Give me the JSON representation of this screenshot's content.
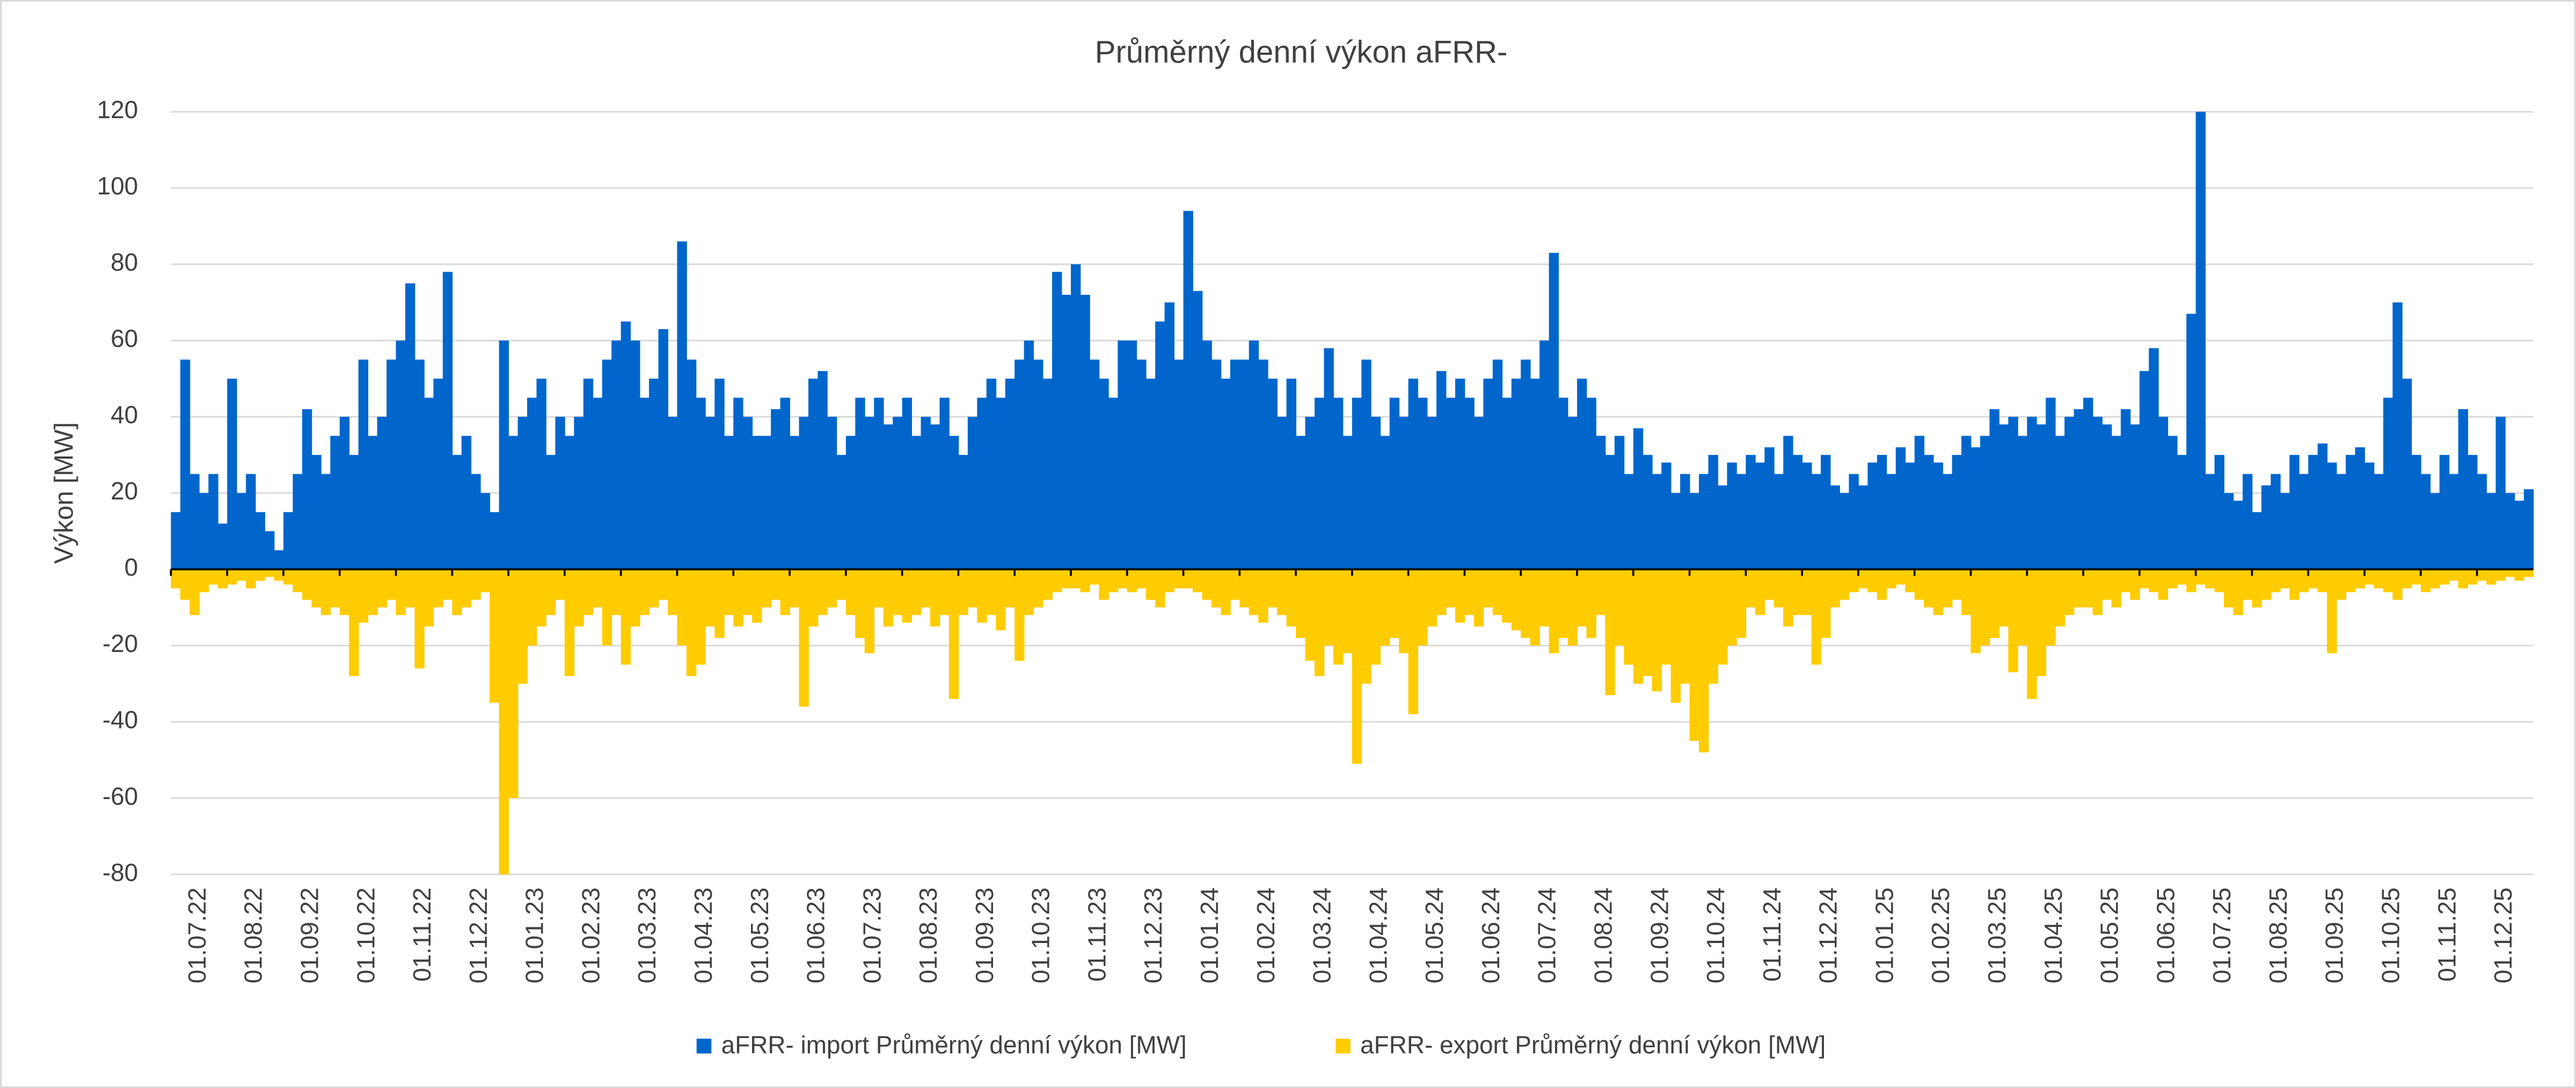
{
  "chart_data": {
    "type": "bar",
    "title": "Průměrný denní výkon aFRR-",
    "y_label": "Výkon [MW]",
    "categories": [
      "01.07.22",
      null,
      null,
      null,
      null,
      null,
      "01.08.22",
      null,
      null,
      null,
      null,
      null,
      "01.09.22",
      null,
      null,
      null,
      null,
      null,
      "01.10.22",
      null,
      null,
      null,
      null,
      null,
      "01.11.22",
      null,
      null,
      null,
      null,
      null,
      "01.12.22",
      null,
      null,
      null,
      null,
      null,
      "01.01.23",
      null,
      null,
      null,
      null,
      null,
      "01.02.23",
      null,
      null,
      null,
      null,
      null,
      "01.03.23",
      null,
      null,
      null,
      null,
      null,
      "01.04.23",
      null,
      null,
      null,
      null,
      null,
      "01.05.23",
      null,
      null,
      null,
      null,
      null,
      "01.06.23",
      null,
      null,
      null,
      null,
      null,
      "01.07.23",
      null,
      null,
      null,
      null,
      null,
      "01.08.23",
      null,
      null,
      null,
      null,
      null,
      "01.09.23",
      null,
      null,
      null,
      null,
      null,
      "01.10.23",
      null,
      null,
      null,
      null,
      null,
      "01.11.23",
      null,
      null,
      null,
      null,
      null,
      "01.12.23",
      null,
      null,
      null,
      null,
      null,
      "01.01.24",
      null,
      null,
      null,
      null,
      null,
      "01.02.24",
      null,
      null,
      null,
      null,
      null,
      "01.03.24",
      null,
      null,
      null,
      null,
      null,
      "01.04.24",
      null,
      null,
      null,
      null,
      null,
      "01.05.24",
      null,
      null,
      null,
      null,
      null,
      "01.06.24",
      null,
      null,
      null,
      null,
      null,
      "01.07.24",
      null,
      null,
      null,
      null,
      null,
      "01.08.24",
      null,
      null,
      null,
      null,
      null,
      "01.09.24",
      null,
      null,
      null,
      null,
      null,
      "01.10.24",
      null,
      null,
      null,
      null,
      null,
      "01.11.24",
      null,
      null,
      null,
      null,
      null,
      "01.12.24",
      null,
      null,
      null,
      null,
      null,
      "01.01.25",
      null,
      null,
      null,
      null,
      null,
      "01.02.25",
      null,
      null,
      null,
      null,
      null,
      "01.03.25",
      null,
      null,
      null,
      null,
      null,
      "01.04.25",
      null,
      null,
      null,
      null,
      null,
      "01.05.25",
      null,
      null,
      null,
      null,
      null,
      "01.06.25",
      null,
      null,
      null,
      null,
      null,
      "01.07.25",
      null,
      null,
      null,
      null,
      null,
      "01.08.25",
      null,
      null,
      null,
      null,
      null,
      "01.09.25",
      null,
      null,
      null,
      null,
      null,
      "01.10.25",
      null,
      null,
      null,
      null,
      null,
      "01.11.25",
      null,
      null,
      null,
      null,
      null,
      "01.12.25",
      null,
      null,
      null,
      null,
      null
    ],
    "series": [
      {
        "name": "aFRR- import Průměrný denní výkon [MW]",
        "color": "#0066cc",
        "values": [
          15,
          55,
          25,
          20,
          25,
          12,
          50,
          20,
          25,
          15,
          10,
          5,
          15,
          25,
          42,
          30,
          25,
          35,
          40,
          30,
          55,
          35,
          40,
          55,
          60,
          75,
          55,
          45,
          50,
          78,
          30,
          35,
          25,
          20,
          15,
          60,
          35,
          40,
          45,
          50,
          30,
          40,
          35,
          40,
          50,
          45,
          55,
          60,
          65,
          60,
          45,
          50,
          63,
          40,
          86,
          55,
          45,
          40,
          50,
          35,
          45,
          40,
          35,
          35,
          42,
          45,
          35,
          40,
          50,
          52,
          40,
          30,
          35,
          45,
          40,
          45,
          38,
          40,
          45,
          35,
          40,
          38,
          45,
          35,
          30,
          40,
          45,
          50,
          45,
          50,
          55,
          60,
          55,
          50,
          78,
          72,
          80,
          72,
          55,
          50,
          45,
          60,
          60,
          55,
          50,
          65,
          70,
          55,
          94,
          73,
          60,
          55,
          50,
          55,
          55,
          60,
          55,
          50,
          40,
          50,
          35,
          40,
          45,
          58,
          45,
          35,
          45,
          55,
          40,
          35,
          45,
          40,
          50,
          45,
          40,
          52,
          45,
          50,
          45,
          40,
          50,
          55,
          45,
          50,
          55,
          50,
          60,
          83,
          45,
          40,
          50,
          45,
          35,
          30,
          35,
          25,
          37,
          30,
          25,
          28,
          20,
          25,
          20,
          25,
          30,
          22,
          28,
          25,
          30,
          28,
          32,
          25,
          35,
          30,
          28,
          25,
          30,
          22,
          20,
          25,
          22,
          28,
          30,
          25,
          32,
          28,
          35,
          30,
          28,
          25,
          30,
          35,
          32,
          35,
          42,
          38,
          40,
          35,
          40,
          38,
          45,
          35,
          40,
          42,
          45,
          40,
          38,
          35,
          42,
          38,
          52,
          58,
          40,
          35,
          30,
          67,
          120,
          25,
          30,
          20,
          18,
          25,
          15,
          22,
          25,
          20,
          30,
          25,
          30,
          33,
          28,
          25,
          30,
          32,
          28,
          25,
          45,
          70,
          50,
          30,
          25,
          20,
          30,
          25,
          42,
          30,
          25,
          20,
          40,
          20,
          18,
          21
        ]
      },
      {
        "name": "aFRR- export Průměrný denní výkon [MW]",
        "color": "#ffcc00",
        "values": [
          -5,
          -8,
          -12,
          -6,
          -4,
          -5,
          -4,
          -3,
          -5,
          -3,
          -2,
          -3,
          -4,
          -6,
          -8,
          -10,
          -12,
          -10,
          -12,
          -28,
          -14,
          -12,
          -10,
          -8,
          -12,
          -10,
          -26,
          -15,
          -10,
          -8,
          -12,
          -10,
          -8,
          -6,
          -35,
          -80,
          -60,
          -30,
          -20,
          -15,
          -12,
          -8,
          -28,
          -15,
          -12,
          -10,
          -20,
          -12,
          -25,
          -15,
          -12,
          -10,
          -8,
          -12,
          -20,
          -28,
          -25,
          -15,
          -18,
          -12,
          -15,
          -12,
          -14,
          -10,
          -8,
          -12,
          -10,
          -36,
          -15,
          -12,
          -10,
          -8,
          -12,
          -18,
          -22,
          -10,
          -15,
          -12,
          -14,
          -12,
          -10,
          -15,
          -12,
          -34,
          -12,
          -10,
          -14,
          -12,
          -16,
          -10,
          -24,
          -12,
          -10,
          -8,
          -6,
          -5,
          -5,
          -6,
          -4,
          -8,
          -6,
          -5,
          -6,
          -5,
          -8,
          -10,
          -6,
          -5,
          -5,
          -6,
          -8,
          -10,
          -12,
          -8,
          -10,
          -12,
          -14,
          -10,
          -12,
          -15,
          -18,
          -24,
          -28,
          -20,
          -25,
          -22,
          -51,
          -30,
          -25,
          -20,
          -18,
          -22,
          -38,
          -20,
          -15,
          -12,
          -10,
          -14,
          -12,
          -15,
          -10,
          -12,
          -14,
          -16,
          -18,
          -20,
          -15,
          -22,
          -18,
          -20,
          -15,
          -18,
          -12,
          -33,
          -20,
          -25,
          -30,
          -28,
          -32,
          -25,
          -35,
          -30,
          -45,
          -48,
          -30,
          -25,
          -20,
          -18,
          -10,
          -12,
          -8,
          -10,
          -15,
          -12,
          -12,
          -25,
          -18,
          -10,
          -8,
          -6,
          -5,
          -6,
          -8,
          -5,
          -4,
          -6,
          -8,
          -10,
          -12,
          -10,
          -8,
          -12,
          -22,
          -20,
          -18,
          -15,
          -27,
          -20,
          -34,
          -28,
          -20,
          -15,
          -12,
          -10,
          -10,
          -12,
          -8,
          -10,
          -6,
          -8,
          -5,
          -6,
          -8,
          -5,
          -4,
          -6,
          -4,
          -5,
          -6,
          -10,
          -12,
          -8,
          -10,
          -8,
          -6,
          -5,
          -8,
          -6,
          -5,
          -6,
          -22,
          -8,
          -6,
          -5,
          -4,
          -5,
          -6,
          -8,
          -5,
          -4,
          -6,
          -5,
          -4,
          -3,
          -5,
          -4,
          -3,
          -4,
          -3,
          -2,
          -3,
          -2
        ]
      }
    ],
    "ylim": [
      -80,
      120
    ],
    "yticks": [
      -80,
      -60,
      -40,
      -20,
      0,
      20,
      40,
      60,
      80,
      100,
      120
    ],
    "grid": true,
    "legend": "bottom"
  }
}
